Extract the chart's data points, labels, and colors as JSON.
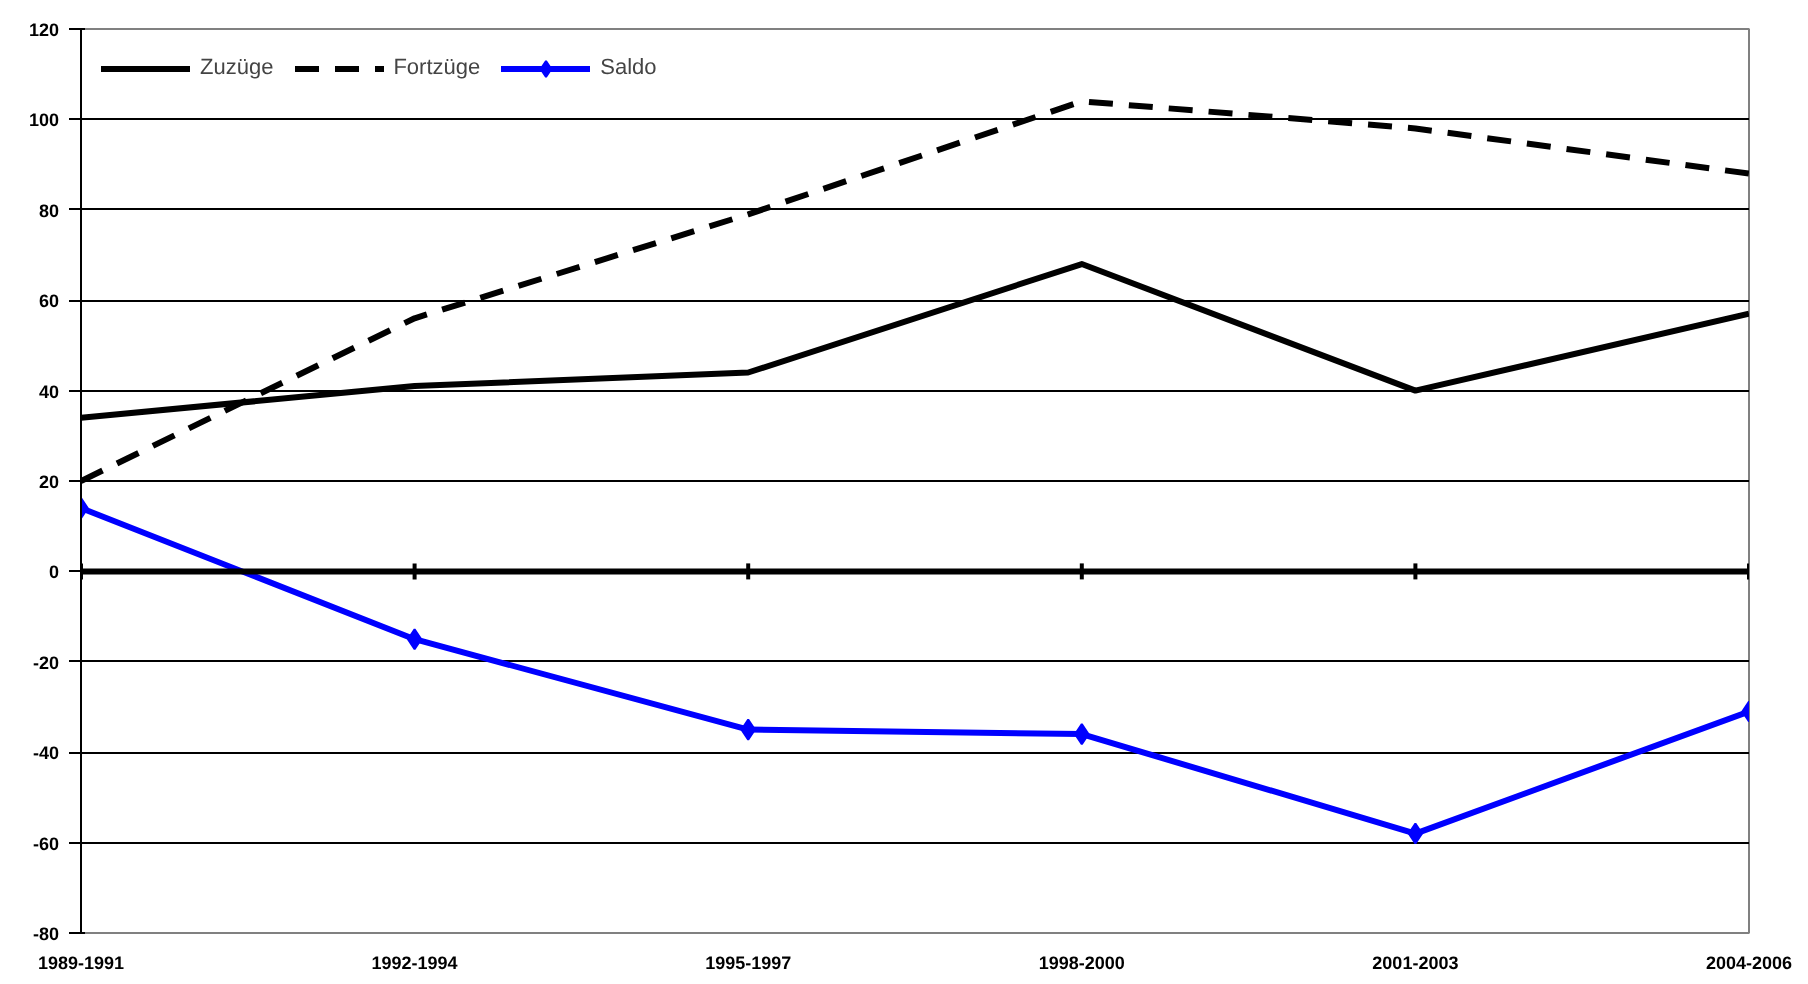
{
  "chart_data": {
    "type": "line",
    "categories": [
      "1989-1991",
      "1992-1994",
      "1995-1997",
      "1998-2000",
      "2001-2003",
      "2004-2006"
    ],
    "series": [
      {
        "name": "Zuzüge",
        "color": "#000000",
        "values": [
          34,
          41,
          44,
          68,
          40,
          57
        ],
        "line_style": "solid",
        "marker": "none"
      },
      {
        "name": "Fortzüge",
        "color": "#000000",
        "values": [
          20,
          56,
          79,
          104,
          98,
          88
        ],
        "line_style": "dashed",
        "marker": "none"
      },
      {
        "name": "Saldo",
        "color": "#0000ff",
        "values": [
          14,
          -15,
          -35,
          -36,
          -58,
          -31
        ],
        "line_style": "solid",
        "marker": "diamond"
      }
    ],
    "ylim": [
      -80,
      120
    ],
    "yticks": [
      -80,
      -60,
      -40,
      -20,
      0,
      20,
      40,
      60,
      80,
      100,
      120
    ],
    "grid": "y",
    "legend": "top left"
  }
}
